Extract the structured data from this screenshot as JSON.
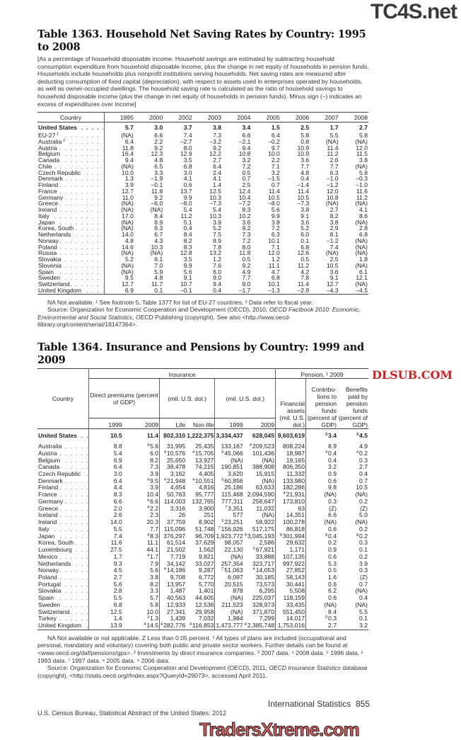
{
  "watermarks": {
    "top": "TC4S.net",
    "middle": "DLSUB.COM",
    "bottom": "TradersXtreme.com"
  },
  "table1363": {
    "title": "Table 1363. Household Net Saving Rates by Country: 1995 to 2008",
    "headnote": "[As a percentage of household disposable income. Household savings are estimated by subtracting household consumption expenditure from household disposable income, plus the change in net equity of households in pension funds. Households include households plus nonprofit institutions serving households. Net saving rates are measured after deducting consumption of fixed capital (depreciation), with respect to assets used in enterprises operated by households, as well as owner-occupied dwellings. The household saving rate is calculated as the ratio of household savings to household disposable income (plus the change in net equity of households in pension funds). Minus sign (–) indicates an excess of expenditures over income]",
    "columns": [
      "Country",
      "1995",
      "2000",
      "2002",
      "2003",
      "2004",
      "2005",
      "2006",
      "2007",
      "2008"
    ],
    "us_row": {
      "country": "United States",
      "values": [
        "5.7",
        "3.0",
        "3.7",
        "3.8",
        "3.4",
        "1.5",
        "2.5",
        "1.7",
        "2.7"
      ]
    },
    "rows": [
      {
        "country": "EU-27",
        "sup": "1",
        "values": [
          "(NA)",
          "6.6",
          "7.4",
          "7.3",
          "6.6",
          "6.4",
          "5.8",
          "5.5",
          "5.8"
        ]
      },
      {
        "country": "Australia",
        "sup": "2",
        "values": [
          "6.4",
          "2.2",
          "–2.7",
          "–3.2",
          "–2.1",
          "–0.2",
          "0.8",
          "(NA)",
          "(NA)"
        ]
      },
      {
        "country": "Austria",
        "values": [
          "11.8",
          "9.2",
          "8.0",
          "9.2",
          "9.4",
          "9.7",
          "10.9",
          "11.4",
          "12.0"
        ]
      },
      {
        "country": "Belgium",
        "values": [
          "16.4",
          "12.3",
          "12.9",
          "12.2",
          "10.8",
          "10.0",
          "10.9",
          "11.2",
          "11.5"
        ]
      },
      {
        "country": "Canada",
        "values": [
          "9.4",
          "4.8",
          "3.5",
          "2.7",
          "3.2",
          "2.2",
          "3.6",
          "2.6",
          "3.8"
        ]
      },
      {
        "country": "Chile",
        "values": [
          "(NA)",
          "6.5",
          "6.8",
          "6.4",
          "7.2",
          "7.1",
          "7.7",
          "7.7",
          "(NA)"
        ]
      },
      {
        "country": "Czech Republic",
        "values": [
          "10.0",
          "3.3",
          "3.0",
          "2.4",
          "0.5",
          "3.2",
          "4.8",
          "6.3",
          "5.8"
        ]
      },
      {
        "country": "Denmark",
        "values": [
          "1.3",
          "–1.9",
          "4.1",
          "4.1",
          "0.7",
          "–1.5",
          "0.4",
          "–1.0",
          "–0.3"
        ]
      },
      {
        "country": "Finland",
        "values": [
          "3.9",
          "–0.1",
          "0.6",
          "1.4",
          "2.5",
          "0.7",
          "–1.4",
          "–1.2",
          "–1.0"
        ]
      },
      {
        "country": "France",
        "values": [
          "12.7",
          "11.8",
          "13.7",
          "12.5",
          "12.4",
          "11.4",
          "11.4",
          "12.0",
          "11.6"
        ]
      },
      {
        "country": "Germany",
        "values": [
          "11.0",
          "9.2",
          "9.9",
          "10.3",
          "10.4",
          "10.5",
          "10.5",
          "10.8",
          "11.2"
        ]
      },
      {
        "country": "Greece",
        "values": [
          "(NA)",
          "–6.0",
          "–8.0",
          "–7.3",
          "–7.2",
          "–8.0",
          "–7.3",
          "(NA)",
          "(NA)"
        ]
      },
      {
        "country": "Ireland",
        "values": [
          "(NA)",
          "(NA)",
          "5.4",
          "5.4",
          "8.3",
          "5.6",
          "3.8",
          "2.7",
          "4.1"
        ]
      },
      {
        "country": "Italy",
        "values": [
          "17.0",
          "8.4",
          "11.2",
          "10.3",
          "10.2",
          "9.9",
          "9.1",
          "8.2",
          "8.6"
        ]
      },
      {
        "country": "Japan",
        "values": [
          "(NA)",
          "8.9",
          "5.1",
          "3.9",
          "3.6",
          "3.8",
          "3.6",
          "3.8",
          "(NA)"
        ]
      },
      {
        "country": "Korea, South",
        "values": [
          "(NA)",
          "9.3",
          "0.4",
          "5.2",
          "9.2",
          "7.2",
          "5.2",
          "2.9",
          "2.8"
        ]
      },
      {
        "country": "Netherlands",
        "values": [
          "14.0",
          "6.7",
          "8.4",
          "7.5",
          "7.3",
          "6.3",
          "6.0",
          "8.1",
          "6.8"
        ]
      },
      {
        "country": "Norway",
        "values": [
          "4.8",
          "4.3",
          "8.2",
          "8.9",
          "7.2",
          "10.1",
          "0.1",
          "–1.2",
          "(NA)"
        ]
      },
      {
        "country": "Poland",
        "values": [
          "14.6",
          "10.3",
          "8.3",
          "7.8",
          "8.0",
          "7.1",
          "6.8",
          "7.4",
          "(NA)"
        ]
      },
      {
        "country": "Russia",
        "values": [
          "(NA)",
          "(NA)",
          "12.8",
          "13.2",
          "11.8",
          "12.0",
          "12.6",
          "(NA)",
          "(NA)"
        ]
      },
      {
        "country": "Slovakia",
        "values": [
          "5.2",
          "6.1",
          "3.5",
          "1.2",
          "0.5",
          "1.2",
          "0.5",
          "2.5",
          "1.8"
        ]
      },
      {
        "country": "Slovenia",
        "values": [
          "(NA)",
          "7.0",
          "9.9",
          "7.6",
          "9.2",
          "11.1",
          "11.2",
          "10.5",
          "(NA)"
        ]
      },
      {
        "country": "Spain",
        "values": [
          "(NA)",
          "5.9",
          "5.6",
          "6.0",
          "4.9",
          "4.7",
          "4.2",
          "3.6",
          "6.1"
        ]
      },
      {
        "country": "Sweden",
        "values": [
          "9.5",
          "4.8",
          "9.1",
          "9.0",
          "7.7",
          "6.8",
          "7.8",
          "9.1",
          "12.1"
        ]
      },
      {
        "country": "Switzerland",
        "values": [
          "12.7",
          "11.7",
          "10.7",
          "9.4",
          "9.0",
          "10.1",
          "11.4",
          "12.7",
          "(NA)"
        ]
      },
      {
        "country": "United Kingdom",
        "values": [
          "6.9",
          "0.1",
          "–0.1",
          "0.4",
          "–1.7",
          "–1.3",
          "–2.9",
          "–4.3",
          "–4.5"
        ]
      }
    ],
    "footnote": "NA Not available. ¹ See footnote 5, Table 1377 for list of EU-27 countries. ² Data refer to fiscal year.",
    "source_prefix": "Source: Organization for Economic Cooperation and Development (OECD), 2010, ",
    "source_title": "OECD Factbook 2010: Economic, Environmental and Social Statistics",
    "source_suffix": ", OECD Publishing (copyright). See also <http://www.oecd-ilibrary.org/content/serial/18147364>."
  },
  "table1364": {
    "title": "Table 1364. Insurance and Pensions by Country: 1999 and 2009",
    "headers": {
      "country": "Country",
      "insurance": "Insurance",
      "premiums": "Direct premiums (percent of GDP)",
      "life_unit": "(mil. U.S. dol.)",
      "inv_unit": "(mil. U.S. dol.)",
      "pension": "Pension, ¹ 2009",
      "fin_assets": "Financial assets (mil. U.S. dol.)",
      "contrib": "Contribu- tions to pension funds (percent of GDP)",
      "benefits": "Benefits paid by pension funds (percent of GDP)",
      "sub": [
        "1999",
        "2009",
        "Life",
        "Non-life",
        "1999",
        "2009"
      ]
    },
    "us_row": {
      "country": "United States",
      "values": [
        "10.5",
        "11.4",
        "802,310",
        "1,222,375",
        "3,334,437",
        "628,045",
        "9,603,619",
        {
          "n": "3",
          "v": "3.4"
        },
        {
          "n": "3",
          "v": "4.5"
        }
      ]
    },
    "rows": [
      {
        "country": "Australia",
        "values": [
          "8.8",
          {
            "n": "4",
            "v": "5.6"
          },
          "31,995",
          "25,435",
          "133,167",
          {
            "n": "4",
            "v": "209,523"
          },
          "808,224",
          "8.9",
          "4.9"
        ]
      },
      {
        "country": "Austria",
        "values": [
          "5.4",
          "6.0",
          {
            "n": "4",
            "v": "10,576"
          },
          {
            "n": "4",
            "v": "15,705"
          },
          {
            "n": "5",
            "v": "45,066"
          },
          "101,436",
          "18,987",
          {
            "n": "4",
            "v": "0.4"
          },
          {
            "n": "4",
            "v": "0.2"
          }
        ]
      },
      {
        "country": "Belgium",
        "values": [
          "6.9",
          "8.2",
          "25,650",
          "13,927",
          "(NA)",
          "(NA)",
          "19,165",
          "0.4",
          "0.3"
        ]
      },
      {
        "country": "Canada",
        "values": [
          "6.4",
          "7.3",
          "38,478",
          "74,215",
          "190,851",
          "388,908",
          "806,350",
          "3.2",
          "2.7"
        ]
      },
      {
        "country": "Czech Republic",
        "values": [
          "3.0",
          "3.9",
          "3,162",
          "4,405",
          "3,620",
          "15,915",
          "11,332",
          "0.9",
          "0.4"
        ]
      },
      {
        "country": "Denmark",
        "values": [
          "6.4",
          {
            "n": "4",
            "v": "9.5"
          },
          {
            "n": "4",
            "v": "21,948"
          },
          {
            "n": "4",
            "v": "10,551"
          },
          {
            "n": "6",
            "v": "60,856"
          },
          "(NA)",
          "133,980",
          "0.6",
          "0.7"
        ]
      },
      {
        "country": "Finland",
        "values": [
          "4.4",
          "3.9",
          "4,654",
          "4,816",
          "25,186",
          "63,633",
          "182,286",
          "9.8",
          "10.5"
        ]
      },
      {
        "country": "France",
        "values": [
          "8.3",
          "10.4",
          "50,763",
          "95,777",
          "115,468",
          "2,094,590",
          {
            "n": "4",
            "v": "21,931"
          },
          "(NA)",
          "(NA)"
        ]
      },
      {
        "country": "Germany",
        "values": [
          "6.6",
          {
            "n": "4",
            "v": "6.6"
          },
          "114,003",
          "132,765",
          "777,311",
          "258,647",
          "173,810",
          "0.3",
          "0.2"
        ]
      },
      {
        "country": "Greece",
        "values": [
          "2.0",
          {
            "n": "4",
            "v": "2.2"
          },
          "3,316",
          "3,900",
          {
            "n": "7",
            "v": "3,351"
          },
          "11,032",
          "63",
          "(Z)",
          "(Z)"
        ]
      },
      {
        "country": "Iceland",
        "values": [
          "2.6",
          "2.3",
          "26",
          "251",
          "577",
          "(NA)",
          "14,351",
          "6.6",
          "5.0"
        ]
      },
      {
        "country": "Ireland",
        "values": [
          "14.0",
          "20.3",
          "37,759",
          "8,902",
          {
            "n": "5",
            "v": "23,251"
          },
          "58,922",
          "100,278",
          "(NA)",
          "(NA)"
        ]
      },
      {
        "country": "Italy",
        "values": [
          "5.5",
          "7.7",
          "115,096",
          "51,748",
          {
            "n": "7",
            "v": "156,926"
          },
          "517,175",
          "86,818",
          "0.6",
          "0.2"
        ]
      },
      {
        "country": "Japan",
        "values": [
          "7.4",
          {
            "n": "4",
            "v": "8.3"
          },
          "376,297",
          "96,709",
          "1,923,772",
          {
            "n": "4",
            "v": "3,045,193"
          },
          {
            "n": "8",
            "v": "301,994"
          },
          {
            "n": "8",
            "v": "0.4"
          },
          {
            "n": "8",
            "v": "0.2"
          }
        ]
      },
      {
        "country": "Korea, South",
        "values": [
          "11.6",
          "11.1",
          "61,514",
          "37,629",
          "98,057",
          "2,586",
          "29,632",
          "0.2",
          "0.3"
        ]
      },
      {
        "country": "Luxembourg",
        "values": [
          "27.5",
          "44.1",
          "21,502",
          "1,562",
          "22,130",
          {
            "n": "9",
            "v": "67,921"
          },
          "1,171",
          "0.9",
          "0.1"
        ]
      },
      {
        "country": "Mexico",
        "values": [
          "1.7",
          {
            "n": "4",
            "v": "1.7"
          },
          "7,719",
          "9,821",
          "(NA)",
          "33,888",
          "107,135",
          "0.6",
          "0.2"
        ]
      },
      {
        "country": "Netherlands",
        "values": [
          "9.3",
          "7.9",
          "34,142",
          "33,027",
          "257,354",
          "323,717",
          "997,922",
          "5.3",
          "3.9"
        ]
      },
      {
        "country": "Norway",
        "values": [
          "4.5",
          "5.6",
          {
            "n": "4",
            "v": "14,186"
          },
          "9,287",
          {
            "n": "7",
            "v": "51,063"
          },
          {
            "n": "4",
            "v": "14,053"
          },
          "27,852",
          "0.5",
          "0.3"
        ]
      },
      {
        "country": "Poland",
        "values": [
          "2.7",
          "3.8",
          "9,708",
          "6,772",
          "6,097",
          "30,185",
          "58,143",
          "1.6",
          "(Z)"
        ]
      },
      {
        "country": "Portugal",
        "values": [
          "5.6",
          "8.2",
          "13,957",
          "5,770",
          "20,515",
          "73,573",
          "30,441",
          "0.6",
          "0.7"
        ]
      },
      {
        "country": "Slovakia",
        "values": [
          "2.8",
          "3.3",
          "1,487",
          "1,401",
          "878",
          "6,295",
          "5,508",
          "6.2",
          "(NA)"
        ]
      },
      {
        "country": "Spain",
        "values": [
          "5.5",
          "5.7",
          "40,563",
          "44,605",
          "(NA)",
          "225,037",
          "118,159",
          "0.6",
          "0.4"
        ]
      },
      {
        "country": "Sweden",
        "values": [
          "6.8",
          "5.8",
          "12,933",
          "12,536",
          "211,523",
          "328,973",
          "33,435",
          "(NA)",
          "(NA)"
        ]
      },
      {
        "country": "Switzerland",
        "values": [
          "12.5",
          "10.0",
          "27,341",
          "29,958",
          "(NA)",
          "371,870",
          "551,450",
          "8.4",
          "5.5"
        ]
      },
      {
        "country": "Turkey",
        "values": [
          "1.4",
          {
            "n": "3",
            "v": "1.3"
          },
          "1,439",
          "7,032",
          "1,984",
          "7,299",
          "14,017",
          {
            "n": "9",
            "v": "0.3"
          },
          "0.1"
        ]
      },
      {
        "country": "United Kingdom",
        "values": [
          "13.9",
          {
            "n": "4",
            "v": "14.5"
          },
          {
            "n": "4",
            "v": "282,776"
          },
          {
            "n": "4",
            "v": "116,853"
          },
          "1,473,777",
          {
            "n": "4",
            "v": "2,385,748"
          },
          "1,753,016",
          "2.7",
          "3.2"
        ]
      }
    ],
    "footnote": "NA Not available or not applicable. Z Less than 0.05 percent. ¹ All types of plans are included (occupational and personal, mandatory and voluntary) covering both public and private sector workers. Further details can be found at <www.oecd.org/daf/pensions/gps>. ² Investments by direct insurance companies. ³ 2007 data. ⁴ 2008 data. ⁵ 1996 data. ⁶ 1993 data. ⁷ 1997 data. ⁸ 2005 data. ⁹ 2006 data.",
    "source_prefix": "Source: Organization for Economic Cooperation and Development (OECD), 2011, ",
    "source_title": "OECD Insurance Statistics",
    "source_suffix": " database (copyright), <http://stats.oecd.org//Index.aspx?QueryId=29073>, accessed April 2011."
  },
  "footer": {
    "section": "International Statistics",
    "page": "855",
    "publication": "U.S. Census Bureau, Statistical Abstract of the United States: 2012"
  }
}
